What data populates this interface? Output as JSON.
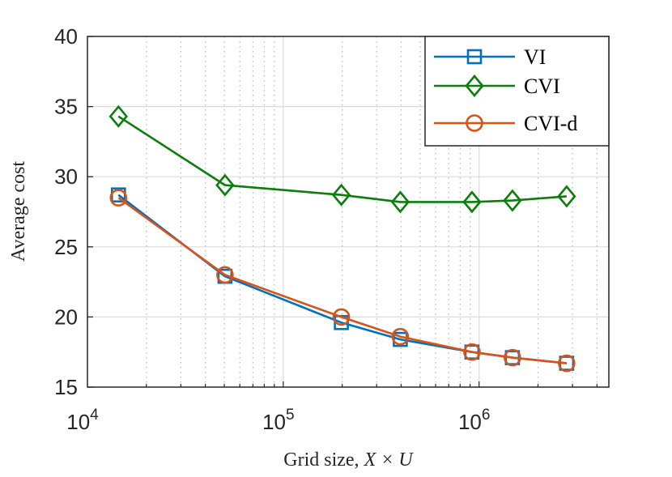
{
  "chart_data": {
    "type": "line",
    "xscale": "log",
    "xlabel_prefix": "Grid size, ",
    "xlabel_math": "X × U",
    "ylabel": "Average cost",
    "xlim": [
      10000,
      4600000
    ],
    "ylim": [
      15,
      40
    ],
    "grid": true,
    "legend_position": "top-right",
    "yticks": [
      15,
      20,
      25,
      30,
      35,
      40
    ],
    "yticklabels": [
      "15",
      "20",
      "25",
      "30",
      "35",
      "40"
    ],
    "xticks": [
      {
        "value": 10000,
        "base": "10",
        "exp": "4"
      },
      {
        "value": 100000,
        "base": "10",
        "exp": "5"
      },
      {
        "value": 1000000,
        "base": "10",
        "exp": "6"
      }
    ],
    "x": [
      14400,
      50400,
      198000,
      396000,
      920000,
      1480000,
      2800000
    ],
    "series": [
      {
        "name": "VI",
        "color": "#0072BD",
        "marker": "square",
        "values": [
          28.7,
          22.9,
          19.6,
          18.4,
          17.5,
          17.1,
          16.7
        ]
      },
      {
        "name": "CVI",
        "color": "#0B7E0B",
        "marker": "diamond",
        "values": [
          34.3,
          29.4,
          28.7,
          28.2,
          28.2,
          28.3,
          28.6
        ]
      },
      {
        "name": "CVI-d",
        "color": "#D95319",
        "marker": "circle",
        "values": [
          28.5,
          23.0,
          20.0,
          18.6,
          17.5,
          17.1,
          16.7
        ]
      }
    ]
  }
}
